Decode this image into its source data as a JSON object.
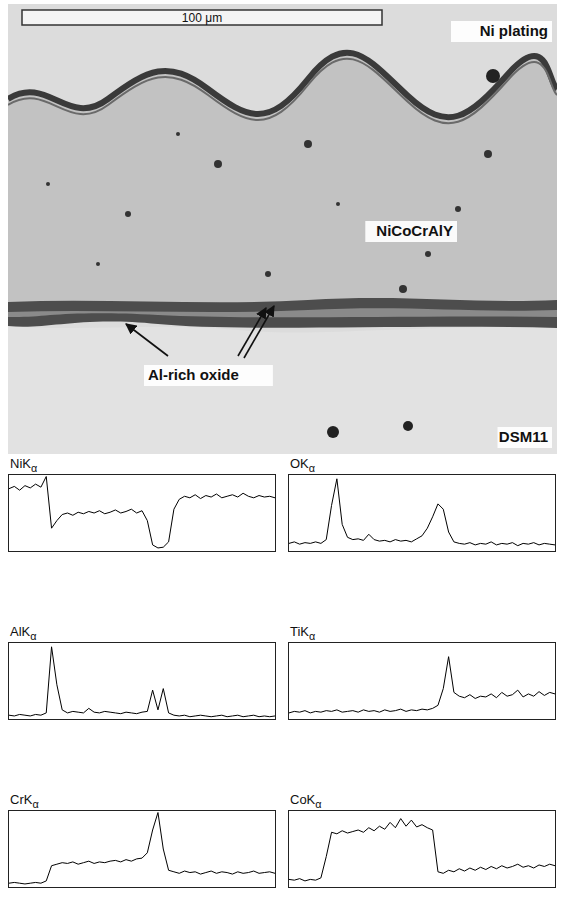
{
  "micrograph": {
    "scale_bar": "100 μm",
    "layers": {
      "top": "Ni plating",
      "coating": "NiCoCrAlY",
      "oxide": "Al-rich oxide",
      "substrate": "DSM11"
    }
  },
  "chart_data": [
    {
      "type": "line",
      "title": "NiKα",
      "color": "#000000",
      "grid": false,
      "tick_labels": false,
      "xlim": [
        0,
        100
      ],
      "ylim": [
        0,
        100
      ],
      "x": [
        0,
        2,
        4,
        6,
        8,
        10,
        12,
        14,
        16,
        18,
        20,
        22,
        24,
        26,
        28,
        30,
        32,
        34,
        36,
        38,
        40,
        42,
        44,
        46,
        48,
        50,
        52,
        54,
        56,
        58,
        60,
        62,
        64,
        66,
        68,
        70,
        72,
        74,
        76,
        78,
        80,
        82,
        84,
        86,
        88,
        90,
        92,
        94,
        96,
        98,
        100
      ],
      "values": [
        82,
        85,
        80,
        86,
        83,
        88,
        84,
        98,
        30,
        40,
        48,
        50,
        47,
        51,
        49,
        52,
        50,
        53,
        49,
        51,
        54,
        50,
        52,
        55,
        50,
        53,
        40,
        8,
        4,
        5,
        12,
        55,
        68,
        72,
        70,
        74,
        69,
        73,
        71,
        75,
        70,
        72,
        74,
        71,
        76,
        72,
        70,
        73,
        71,
        72,
        70
      ]
    },
    {
      "type": "line",
      "title": "OKα",
      "color": "#000000",
      "grid": false,
      "tick_labels": false,
      "xlim": [
        0,
        100
      ],
      "ylim": [
        0,
        100
      ],
      "x": [
        0,
        2,
        4,
        6,
        8,
        10,
        12,
        14,
        16,
        18,
        20,
        22,
        24,
        26,
        28,
        30,
        32,
        34,
        36,
        38,
        40,
        42,
        44,
        46,
        48,
        50,
        52,
        54,
        56,
        58,
        60,
        62,
        64,
        66,
        68,
        70,
        72,
        74,
        76,
        78,
        80,
        82,
        84,
        86,
        88,
        90,
        92,
        94,
        96,
        98,
        100
      ],
      "values": [
        10,
        12,
        9,
        11,
        10,
        12,
        10,
        15,
        60,
        95,
        35,
        18,
        15,
        16,
        14,
        22,
        15,
        13,
        14,
        12,
        15,
        13,
        14,
        12,
        16,
        20,
        30,
        45,
        62,
        55,
        25,
        12,
        10,
        9,
        11,
        8,
        10,
        9,
        12,
        8,
        10,
        9,
        11,
        7,
        10,
        9,
        11,
        8,
        10,
        9,
        8
      ]
    },
    {
      "type": "line",
      "title": "AlKα",
      "color": "#000000",
      "grid": false,
      "tick_labels": false,
      "xlim": [
        0,
        100
      ],
      "ylim": [
        0,
        100
      ],
      "x": [
        0,
        2,
        4,
        6,
        8,
        10,
        12,
        14,
        16,
        18,
        20,
        22,
        24,
        26,
        28,
        30,
        32,
        34,
        36,
        38,
        40,
        42,
        44,
        46,
        48,
        50,
        52,
        54,
        56,
        58,
        60,
        62,
        64,
        66,
        68,
        70,
        72,
        74,
        76,
        78,
        80,
        82,
        84,
        86,
        88,
        90,
        92,
        94,
        96,
        98,
        100
      ],
      "values": [
        5,
        4,
        6,
        5,
        4,
        6,
        5,
        8,
        95,
        45,
        12,
        8,
        10,
        9,
        8,
        14,
        9,
        8,
        10,
        9,
        8,
        7,
        9,
        8,
        7,
        9,
        10,
        38,
        12,
        40,
        8,
        5,
        4,
        5,
        3,
        4,
        5,
        4,
        3,
        4,
        5,
        3,
        4,
        5,
        3,
        4,
        5,
        3,
        4,
        3,
        4
      ]
    },
    {
      "type": "line",
      "title": "TiKα",
      "color": "#000000",
      "grid": false,
      "tick_labels": false,
      "xlim": [
        0,
        100
      ],
      "ylim": [
        0,
        100
      ],
      "x": [
        0,
        2,
        4,
        6,
        8,
        10,
        12,
        14,
        16,
        18,
        20,
        22,
        24,
        26,
        28,
        30,
        32,
        34,
        36,
        38,
        40,
        42,
        44,
        46,
        48,
        50,
        52,
        54,
        56,
        58,
        60,
        62,
        64,
        66,
        68,
        70,
        72,
        74,
        76,
        78,
        80,
        82,
        84,
        86,
        88,
        90,
        92,
        94,
        96,
        98,
        100
      ],
      "values": [
        8,
        10,
        9,
        11,
        8,
        10,
        9,
        11,
        10,
        12,
        9,
        10,
        11,
        9,
        12,
        10,
        11,
        9,
        12,
        10,
        11,
        13,
        10,
        12,
        11,
        13,
        12,
        14,
        18,
        40,
        82,
        35,
        30,
        28,
        32,
        27,
        30,
        29,
        33,
        28,
        35,
        30,
        32,
        38,
        29,
        33,
        30,
        36,
        31,
        35,
        33
      ]
    },
    {
      "type": "line",
      "title": "CrKα",
      "color": "#000000",
      "grid": false,
      "tick_labels": false,
      "xlim": [
        0,
        100
      ],
      "ylim": [
        0,
        100
      ],
      "x": [
        0,
        2,
        4,
        6,
        8,
        10,
        12,
        14,
        16,
        18,
        20,
        22,
        24,
        26,
        28,
        30,
        32,
        34,
        36,
        38,
        40,
        42,
        44,
        46,
        48,
        50,
        52,
        54,
        56,
        58,
        60,
        62,
        64,
        66,
        68,
        70,
        72,
        74,
        76,
        78,
        80,
        82,
        84,
        86,
        88,
        90,
        92,
        94,
        96,
        98,
        100
      ],
      "values": [
        5,
        6,
        5,
        4,
        5,
        6,
        5,
        8,
        28,
        30,
        32,
        31,
        33,
        30,
        32,
        34,
        31,
        33,
        32,
        34,
        35,
        33,
        36,
        34,
        37,
        38,
        45,
        75,
        98,
        50,
        22,
        20,
        18,
        21,
        19,
        20,
        17,
        19,
        21,
        18,
        20,
        19,
        17,
        20,
        18,
        19,
        21,
        18,
        19,
        20,
        18
      ]
    },
    {
      "type": "line",
      "title": "CoKα",
      "color": "#000000",
      "grid": false,
      "tick_labels": false,
      "xlim": [
        0,
        100
      ],
      "ylim": [
        0,
        100
      ],
      "x": [
        0,
        2,
        4,
        6,
        8,
        10,
        12,
        14,
        16,
        18,
        20,
        22,
        24,
        26,
        28,
        30,
        32,
        34,
        36,
        38,
        40,
        42,
        44,
        46,
        48,
        50,
        52,
        54,
        56,
        58,
        60,
        62,
        64,
        66,
        68,
        70,
        72,
        74,
        76,
        78,
        80,
        82,
        84,
        86,
        88,
        90,
        92,
        94,
        96,
        98,
        100
      ],
      "values": [
        10,
        9,
        11,
        8,
        10,
        9,
        12,
        40,
        72,
        70,
        74,
        71,
        73,
        75,
        72,
        78,
        74,
        80,
        76,
        85,
        78,
        90,
        80,
        88,
        79,
        82,
        78,
        75,
        20,
        18,
        22,
        20,
        24,
        21,
        25,
        22,
        26,
        23,
        27,
        24,
        28,
        25,
        27,
        30,
        26,
        28,
        25,
        29,
        27,
        30,
        28
      ]
    }
  ]
}
